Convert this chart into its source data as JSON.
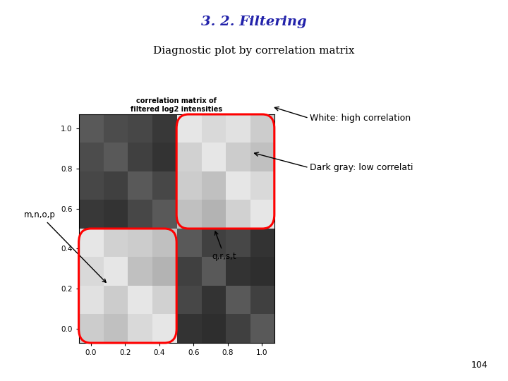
{
  "title_main": "3. 2. Filtering",
  "title_sub": "Diagnostic plot by correlation matrix",
  "plot_title_line1": "correlation matrix of",
  "plot_title_line2": "filtered log2 intensities",
  "title_main_color": "#2222aa",
  "title_sub_color": "#000000",
  "page_number": "104",
  "labels_left": "m,n,o,p",
  "labels_right": "q,r,s,t",
  "annotation_white": "White: high correlation",
  "annotation_dark": "Dark gray: low correlati",
  "corr_matrix": [
    [
      0.35,
      0.3,
      0.28,
      0.22,
      0.9,
      0.85,
      0.88,
      0.8
    ],
    [
      0.3,
      0.35,
      0.25,
      0.2,
      0.82,
      0.9,
      0.8,
      0.75
    ],
    [
      0.28,
      0.25,
      0.35,
      0.28,
      0.8,
      0.75,
      0.9,
      0.85
    ],
    [
      0.22,
      0.2,
      0.28,
      0.35,
      0.75,
      0.7,
      0.82,
      0.9
    ],
    [
      0.9,
      0.82,
      0.8,
      0.75,
      0.35,
      0.25,
      0.28,
      0.2
    ],
    [
      0.85,
      0.9,
      0.75,
      0.7,
      0.25,
      0.35,
      0.2,
      0.18
    ],
    [
      0.88,
      0.8,
      0.9,
      0.82,
      0.28,
      0.2,
      0.35,
      0.25
    ],
    [
      0.8,
      0.75,
      0.85,
      0.9,
      0.2,
      0.18,
      0.25,
      0.35
    ]
  ],
  "background_color": "#ffffff",
  "cmap": "gray",
  "xlabel_ticks": [
    "0.0",
    "0.2",
    "0.4",
    "0.6",
    "0.8",
    "1.0"
  ],
  "ylabel_ticks": [
    "0.0",
    "0.2",
    "0.4",
    "0.6",
    "0.8",
    "1.0"
  ]
}
